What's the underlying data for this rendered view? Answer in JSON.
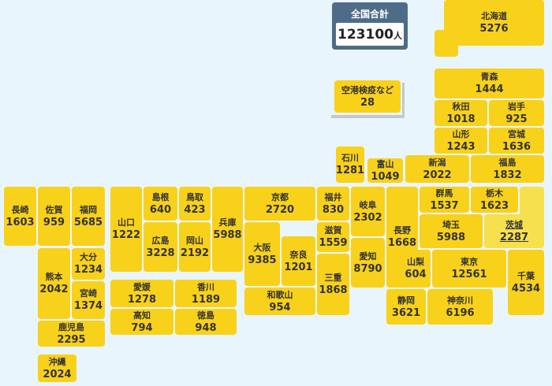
{
  "total": {
    "label": "全国合計",
    "value": 123100,
    "unit": "人"
  },
  "regions": [
    {
      "name": "北海道",
      "value": 5276
    },
    {
      "name": "空港検疫など",
      "value": 28
    },
    {
      "name": "青森",
      "value": 1444
    },
    {
      "name": "秋田",
      "value": 1018
    },
    {
      "name": "岩手",
      "value": 925
    },
    {
      "name": "山形",
      "value": 1243
    },
    {
      "name": "宮城",
      "value": 1636
    },
    {
      "name": "石川",
      "value": 1281
    },
    {
      "name": "富山",
      "value": 1049
    },
    {
      "name": "新潟",
      "value": 2022
    },
    {
      "name": "福島",
      "value": 1832
    },
    {
      "name": "長崎",
      "value": 1603
    },
    {
      "name": "佐賀",
      "value": 959
    },
    {
      "name": "福岡",
      "value": 5685
    },
    {
      "name": "山口",
      "value": 1222
    },
    {
      "name": "島根",
      "value": 640
    },
    {
      "name": "鳥取",
      "value": 423
    },
    {
      "name": "兵庫",
      "value": 5988
    },
    {
      "name": "京都",
      "value": 2720
    },
    {
      "name": "福井",
      "value": 830
    },
    {
      "name": "岐阜",
      "value": 2302
    },
    {
      "name": "長野",
      "value": 1668
    },
    {
      "name": "群馬",
      "value": 1537
    },
    {
      "name": "栃木",
      "value": 1623
    },
    {
      "name": "茨城",
      "value": 2287
    },
    {
      "name": "広島",
      "value": 3228
    },
    {
      "name": "岡山",
      "value": 2192
    },
    {
      "name": "大阪",
      "value": 9385
    },
    {
      "name": "奈良",
      "value": 1201
    },
    {
      "name": "滋賀",
      "value": 1559
    },
    {
      "name": "愛知",
      "value": 8790
    },
    {
      "name": "埼玉",
      "value": 5988
    },
    {
      "name": "熊本",
      "value": 2042
    },
    {
      "name": "大分",
      "value": 1234
    },
    {
      "name": "宮崎",
      "value": 1374
    },
    {
      "name": "愛媛",
      "value": 1278
    },
    {
      "name": "香川",
      "value": 1189
    },
    {
      "name": "高知",
      "value": 794
    },
    {
      "name": "徳島",
      "value": 948
    },
    {
      "name": "和歌山",
      "value": 954
    },
    {
      "name": "三重",
      "value": 1868
    },
    {
      "name": "山梨",
      "value": 604
    },
    {
      "name": "東京",
      "value": 12561
    },
    {
      "name": "千葉",
      "value": 4534
    },
    {
      "name": "静岡",
      "value": 3621
    },
    {
      "name": "神奈川",
      "value": 6196
    },
    {
      "name": "鹿児島",
      "value": 2295
    },
    {
      "name": "沖縄",
      "value": 2024
    }
  ]
}
